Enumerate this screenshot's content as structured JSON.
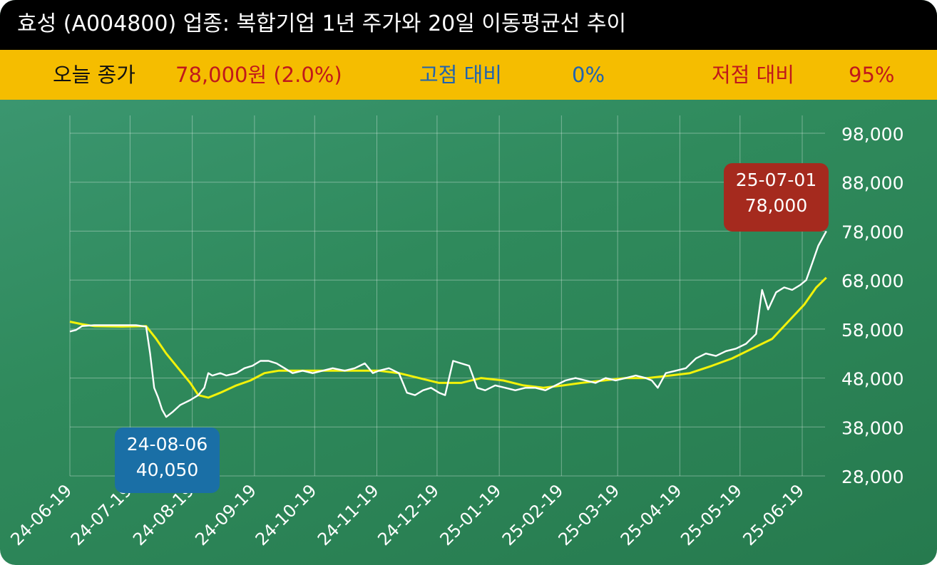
{
  "title": "효성 (A004800) 업종: 복합기업 1년 주가와 20일 이동평균선 추이",
  "summary": {
    "close_label": "오늘 종가",
    "close_value": "78,000원 (2.0%)",
    "high_label": "고점 대비",
    "high_value": "0%",
    "low_label": "저점 대비",
    "low_value": "95%"
  },
  "colors": {
    "price_line": "#ffffff",
    "ma_line": "#f2f20a",
    "low_tag": "#1a6fa6",
    "high_tag": "#a52a1e",
    "header": "#000000",
    "info_bar": "#f5bd00"
  },
  "annotations": {
    "low": {
      "date": "24-08-06",
      "value": "40,050"
    },
    "high": {
      "date": "25-07-01",
      "value": "78,000"
    }
  },
  "chart_data": {
    "type": "line",
    "ylim": [
      28000,
      98000
    ],
    "y_ticks": [
      28000,
      38000,
      48000,
      58000,
      68000,
      78000,
      88000,
      98000
    ],
    "y_tick_labels": [
      "28,000",
      "38,000",
      "48,000",
      "58,000",
      "68,000",
      "78,000",
      "88,000",
      "98,000"
    ],
    "x_tick_labels": [
      "24-06-19",
      "24-07-19",
      "24-08-19",
      "24-09-19",
      "24-10-19",
      "24-11-19",
      "24-12-19",
      "25-01-19",
      "25-02-19",
      "25-03-19",
      "25-04-19",
      "25-05-19",
      "25-06-19"
    ],
    "x_range": [
      "2024-06-19",
      "2025-07-01"
    ],
    "grid": true,
    "series": [
      {
        "name": "price",
        "points": [
          [
            "2024-06-19",
            57500
          ],
          [
            "2024-06-22",
            57800
          ],
          [
            "2024-06-25",
            58600
          ],
          [
            "2024-07-01",
            58800
          ],
          [
            "2024-07-08",
            58800
          ],
          [
            "2024-07-15",
            58800
          ],
          [
            "2024-07-22",
            58800
          ],
          [
            "2024-07-27",
            58500
          ],
          [
            "2024-07-29",
            53000
          ],
          [
            "2024-07-31",
            46000
          ],
          [
            "2024-08-02",
            44000
          ],
          [
            "2024-08-04",
            41500
          ],
          [
            "2024-08-06",
            40050
          ],
          [
            "2024-08-09",
            41000
          ],
          [
            "2024-08-13",
            42500
          ],
          [
            "2024-08-18",
            43500
          ],
          [
            "2024-08-22",
            44500
          ],
          [
            "2024-08-25",
            46000
          ],
          [
            "2024-08-27",
            49000
          ],
          [
            "2024-08-29",
            48500
          ],
          [
            "2024-09-02",
            49000
          ],
          [
            "2024-09-05",
            48500
          ],
          [
            "2024-09-10",
            49000
          ],
          [
            "2024-09-14",
            50000
          ],
          [
            "2024-09-18",
            50500
          ],
          [
            "2024-09-22",
            51500
          ],
          [
            "2024-09-26",
            51500
          ],
          [
            "2024-09-30",
            51000
          ],
          [
            "2024-10-04",
            50000
          ],
          [
            "2024-10-08",
            49000
          ],
          [
            "2024-10-13",
            49500
          ],
          [
            "2024-10-18",
            49000
          ],
          [
            "2024-10-23",
            49500
          ],
          [
            "2024-10-28",
            50000
          ],
          [
            "2024-11-03",
            49500
          ],
          [
            "2024-11-08",
            50000
          ],
          [
            "2024-11-13",
            51000
          ],
          [
            "2024-11-17",
            49000
          ],
          [
            "2024-11-20",
            49500
          ],
          [
            "2024-11-25",
            50000
          ],
          [
            "2024-11-30",
            49000
          ],
          [
            "2024-12-04",
            45000
          ],
          [
            "2024-12-08",
            44500
          ],
          [
            "2024-12-12",
            45500
          ],
          [
            "2024-12-16",
            46000
          ],
          [
            "2024-12-20",
            45000
          ],
          [
            "2024-12-23",
            44500
          ],
          [
            "2024-12-27",
            51500
          ],
          [
            "2024-12-31",
            51000
          ],
          [
            "2025-01-04",
            50500
          ],
          [
            "2025-01-08",
            46000
          ],
          [
            "2025-01-12",
            45500
          ],
          [
            "2025-01-17",
            46500
          ],
          [
            "2025-01-22",
            46000
          ],
          [
            "2025-01-27",
            45500
          ],
          [
            "2025-02-01",
            46000
          ],
          [
            "2025-02-06",
            46000
          ],
          [
            "2025-02-11",
            45500
          ],
          [
            "2025-02-16",
            46500
          ],
          [
            "2025-02-21",
            47500
          ],
          [
            "2025-02-26",
            48000
          ],
          [
            "2025-03-03",
            47500
          ],
          [
            "2025-03-08",
            47000
          ],
          [
            "2025-03-13",
            48000
          ],
          [
            "2025-03-18",
            47500
          ],
          [
            "2025-03-23",
            48000
          ],
          [
            "2025-03-28",
            48500
          ],
          [
            "2025-04-02",
            48000
          ],
          [
            "2025-04-05",
            47500
          ],
          [
            "2025-04-08",
            46000
          ],
          [
            "2025-04-12",
            49000
          ],
          [
            "2025-04-17",
            49500
          ],
          [
            "2025-04-22",
            50000
          ],
          [
            "2025-04-27",
            52000
          ],
          [
            "2025-05-02",
            53000
          ],
          [
            "2025-05-07",
            52500
          ],
          [
            "2025-05-12",
            53500
          ],
          [
            "2025-05-17",
            54000
          ],
          [
            "2025-05-22",
            55000
          ],
          [
            "2025-05-27",
            57000
          ],
          [
            "2025-05-30",
            66000
          ],
          [
            "2025-06-02",
            62000
          ],
          [
            "2025-06-06",
            65500
          ],
          [
            "2025-06-10",
            66500
          ],
          [
            "2025-06-14",
            66000
          ],
          [
            "2025-06-18",
            67000
          ],
          [
            "2025-06-21",
            68000
          ],
          [
            "2025-06-24",
            71500
          ],
          [
            "2025-06-27",
            75000
          ],
          [
            "2025-07-01",
            78000
          ]
        ]
      },
      {
        "name": "ma20",
        "points": [
          [
            "2024-06-19",
            59500
          ],
          [
            "2024-06-25",
            59000
          ],
          [
            "2024-07-01",
            58600
          ],
          [
            "2024-07-15",
            58500
          ],
          [
            "2024-07-27",
            58600
          ],
          [
            "2024-08-01",
            56000
          ],
          [
            "2024-08-06",
            53000
          ],
          [
            "2024-08-12",
            50000
          ],
          [
            "2024-08-18",
            47000
          ],
          [
            "2024-08-22",
            44500
          ],
          [
            "2024-08-27",
            44000
          ],
          [
            "2024-09-02",
            45000
          ],
          [
            "2024-09-10",
            46500
          ],
          [
            "2024-09-17",
            47500
          ],
          [
            "2024-09-24",
            49000
          ],
          [
            "2024-10-01",
            49500
          ],
          [
            "2024-10-15",
            49500
          ],
          [
            "2024-10-29",
            49500
          ],
          [
            "2024-11-08",
            49500
          ],
          [
            "2024-11-20",
            49500
          ],
          [
            "2024-11-30",
            49000
          ],
          [
            "2024-12-10",
            48000
          ],
          [
            "2024-12-20",
            47000
          ],
          [
            "2024-12-31",
            47000
          ],
          [
            "2025-01-10",
            48000
          ],
          [
            "2025-01-21",
            47500
          ],
          [
            "2025-01-31",
            46500
          ],
          [
            "2025-02-10",
            46000
          ],
          [
            "2025-02-20",
            46500
          ],
          [
            "2025-03-01",
            47000
          ],
          [
            "2025-03-12",
            47500
          ],
          [
            "2025-03-23",
            48000
          ],
          [
            "2025-04-03",
            48000
          ],
          [
            "2025-04-14",
            48500
          ],
          [
            "2025-04-24",
            49000
          ],
          [
            "2025-05-05",
            50500
          ],
          [
            "2025-05-15",
            52000
          ],
          [
            "2025-05-25",
            54000
          ],
          [
            "2025-06-04",
            56000
          ],
          [
            "2025-06-12",
            59500
          ],
          [
            "2025-06-20",
            63000
          ],
          [
            "2025-06-26",
            66500
          ],
          [
            "2025-07-01",
            68500
          ]
        ]
      }
    ]
  }
}
